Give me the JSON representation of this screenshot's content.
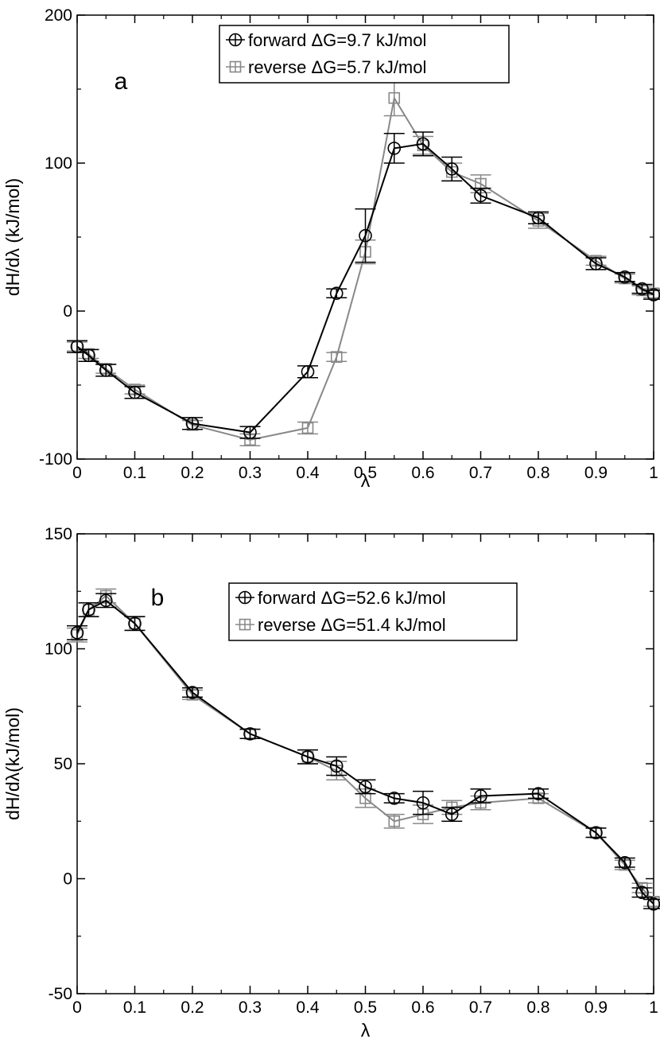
{
  "chart_data": [
    {
      "type": "line",
      "panel_letter": "a",
      "xlabel": "λ",
      "ylabel": "dH/dλ (kJ/mol)",
      "xlim": [
        0,
        1
      ],
      "ylim": [
        -100,
        200
      ],
      "x_ticks": [
        "0",
        "0.1",
        "0.2",
        "0.3",
        "0.4",
        "0.5",
        "0.6",
        "0.7",
        "0.8",
        "0.9",
        "1"
      ],
      "y_ticks": [
        "-100",
        "0",
        "100",
        "200"
      ],
      "x_tick_values": [
        0,
        0.1,
        0.2,
        0.3,
        0.4,
        0.5,
        0.6,
        0.7,
        0.8,
        0.9,
        1
      ],
      "y_tick_values": [
        -100,
        0,
        100,
        200
      ],
      "grid": false,
      "legend_position": "top-center",
      "series": [
        {
          "name": "forward ΔG=9.7 kJ/mol",
          "color": "#000000",
          "marker": "circle",
          "x": [
            0,
            0.02,
            0.05,
            0.1,
            0.2,
            0.3,
            0.4,
            0.45,
            0.5,
            0.55,
            0.6,
            0.65,
            0.7,
            0.8,
            0.9,
            0.95,
            0.98,
            1
          ],
          "y": [
            -24,
            -30,
            -40,
            -55,
            -76,
            -82,
            -41,
            12,
            51,
            110,
            113,
            96,
            78,
            63,
            32,
            23,
            15,
            11
          ],
          "err": [
            4,
            4,
            4,
            4,
            4,
            4,
            4,
            3,
            18,
            10,
            8,
            8,
            5,
            4,
            4,
            3,
            3,
            3
          ]
        },
        {
          "name": "reverse ΔG=5.7 kJ/mol",
          "color": "#888888",
          "marker": "square",
          "x": [
            0,
            0.02,
            0.05,
            0.1,
            0.2,
            0.3,
            0.4,
            0.45,
            0.5,
            0.55,
            0.6,
            0.65,
            0.7,
            0.8,
            0.9,
            0.95,
            0.98,
            1
          ],
          "y": [
            -24,
            -29,
            -39,
            -53,
            -77,
            -87,
            -79,
            -31,
            40,
            144,
            112,
            94,
            86,
            61,
            34,
            22,
            14,
            12
          ],
          "err": [
            3,
            3,
            3,
            3,
            3,
            4,
            4,
            3,
            8,
            12,
            6,
            6,
            6,
            5,
            3,
            3,
            3,
            3
          ]
        }
      ]
    },
    {
      "type": "line",
      "panel_letter": "b",
      "xlabel": "λ",
      "ylabel": "dH/dλ(kJ/mol)",
      "xlim": [
        0,
        1
      ],
      "ylim": [
        -50,
        150
      ],
      "x_ticks": [
        "0",
        "0.1",
        "0.2",
        "0.3",
        "0.4",
        "0.5",
        "0.6",
        "0.7",
        "0.8",
        "0.9",
        "1"
      ],
      "y_ticks": [
        "-50",
        "0",
        "50",
        "100",
        "150"
      ],
      "x_tick_values": [
        0,
        0.1,
        0.2,
        0.3,
        0.4,
        0.5,
        0.6,
        0.7,
        0.8,
        0.9,
        1
      ],
      "y_tick_values": [
        -50,
        0,
        50,
        100,
        150
      ],
      "grid": false,
      "legend_position": "top-center",
      "series": [
        {
          "name": "forward ΔG=52.6 kJ/mol",
          "color": "#000000",
          "marker": "circle",
          "x": [
            0,
            0.02,
            0.05,
            0.1,
            0.2,
            0.3,
            0.4,
            0.45,
            0.5,
            0.55,
            0.6,
            0.65,
            0.7,
            0.8,
            0.9,
            0.95,
            0.98,
            1
          ],
          "y": [
            107,
            117,
            121,
            111,
            81,
            63,
            53,
            49,
            40,
            35,
            33,
            28,
            36,
            37,
            20,
            7,
            -6,
            -11
          ],
          "err": [
            3,
            3,
            3,
            3,
            2,
            2,
            3,
            4,
            3,
            2,
            5,
            3,
            3,
            2,
            2,
            2,
            2,
            2
          ]
        },
        {
          "name": "reverse ΔG=51.4 kJ/mol",
          "color": "#888888",
          "marker": "square",
          "x": [
            0,
            0.02,
            0.05,
            0.1,
            0.2,
            0.3,
            0.4,
            0.45,
            0.5,
            0.55,
            0.6,
            0.65,
            0.7,
            0.8,
            0.9,
            0.95,
            0.98,
            1
          ],
          "y": [
            106,
            117,
            123,
            111,
            80,
            63,
            53,
            47,
            35,
            25,
            28,
            31,
            33,
            35,
            20,
            6,
            -4,
            -10
          ],
          "err": [
            3,
            3,
            3,
            3,
            2,
            2,
            3,
            4,
            4,
            3,
            4,
            3,
            3,
            2,
            2,
            2,
            2,
            2
          ]
        }
      ]
    }
  ]
}
